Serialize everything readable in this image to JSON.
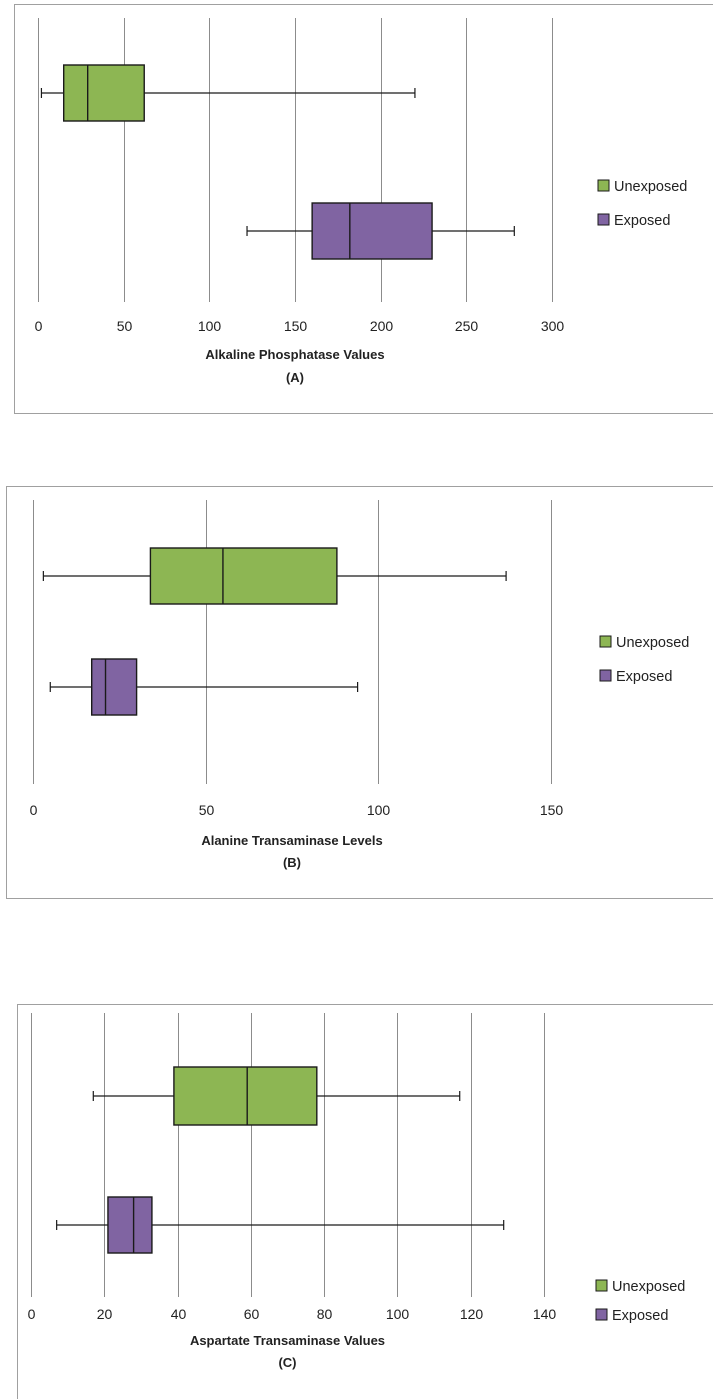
{
  "colors": {
    "unexposed": "#8DB653",
    "exposed": "#8064A2"
  },
  "legend": {
    "unexposed": "Unexposed",
    "exposed": "Exposed",
    "position": "right"
  },
  "chart_data": [
    {
      "type": "boxplot",
      "xlabel": "Alkaline Phosphatase Values",
      "caption": "(A)",
      "xlim": [
        0,
        300
      ],
      "ticks": [
        "0",
        "50",
        "100",
        "150",
        "200",
        "250",
        "300"
      ],
      "grid": true,
      "series": [
        {
          "name": "Unexposed",
          "min": 2,
          "q1": 15,
          "median": 29,
          "q3": 62,
          "max": 220
        },
        {
          "name": "Exposed",
          "min": 122,
          "q1": 160,
          "median": 182,
          "q3": 230,
          "max": 278
        }
      ]
    },
    {
      "type": "boxplot",
      "xlabel": "Alanine Transaminase Levels",
      "caption": "(B)",
      "xlim": [
        0,
        150
      ],
      "ticks": [
        "0",
        "50",
        "100",
        "150"
      ],
      "grid": true,
      "series": [
        {
          "name": "Unexposed",
          "min": 3,
          "q1": 34,
          "median": 55,
          "q3": 88,
          "max": 137
        },
        {
          "name": "Exposed",
          "min": 5,
          "q1": 17,
          "median": 21,
          "q3": 30,
          "max": 94
        }
      ]
    },
    {
      "type": "boxplot",
      "xlabel": "Aspartate Transaminase Values",
      "caption": "(C)",
      "xlim": [
        0,
        140
      ],
      "ticks": [
        "0",
        "20",
        "40",
        "60",
        "80",
        "100",
        "120",
        "140"
      ],
      "grid": true,
      "series": [
        {
          "name": "Unexposed",
          "min": 17,
          "q1": 39,
          "median": 59,
          "q3": 78,
          "max": 117
        },
        {
          "name": "Exposed",
          "min": 7,
          "q1": 21,
          "median": 28,
          "q3": 33,
          "max": 129
        }
      ]
    }
  ]
}
